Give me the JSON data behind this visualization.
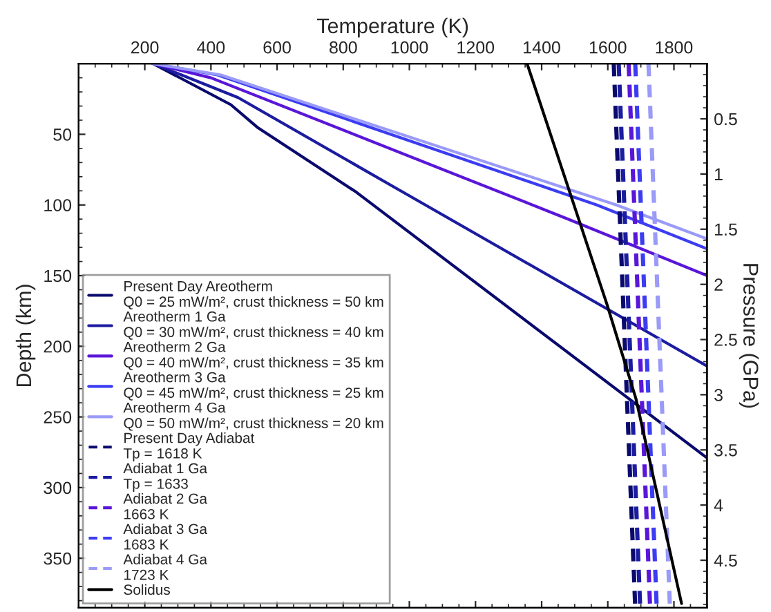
{
  "chart_data": {
    "type": "line",
    "xlabel": "Temperature (K)",
    "ylabel": "Depth (km)",
    "y2label": "Pressure (GPa)",
    "xlim": [
      0,
      1900
    ],
    "xticks": [
      200,
      400,
      600,
      800,
      1000,
      1200,
      1400,
      1600,
      1800
    ],
    "ylim": [
      385,
      0
    ],
    "yticks": [
      50,
      100,
      150,
      200,
      250,
      300,
      350
    ],
    "y2lim": [
      4.93,
      0
    ],
    "y2ticks": [
      0.5,
      1,
      1.5,
      2,
      2.5,
      3,
      3.5,
      4,
      4.5
    ],
    "legend": "bottom left",
    "grid": false,
    "line_style": "solid",
    "marker": "none",
    "series": [
      {
        "name": "Present Day Areotherm\nQ0 = 25 mW/m², crust thickness = 50 km",
        "color": "#0a0a6e",
        "x": [
          225,
          460,
          540,
          840,
          1900
        ],
        "values": [
          0,
          29,
          45,
          91,
          279
        ]
      },
      {
        "name": "Areotherm 1 Ga\nQ0 = 30 mW/m², crust thickness = 40 km",
        "color": "#1c1ca0",
        "x": [
          225,
          482,
          981,
          1900
        ],
        "values": [
          0,
          24,
          91,
          214
        ]
      },
      {
        "name": "Areotherm 2 Ga\nQ0 = 40 mW/m², crust thickness = 35 km",
        "color": "#5a16d8",
        "x": [
          225,
          400,
          1480,
          1900
        ],
        "values": [
          0,
          10,
          110,
          150
        ]
      },
      {
        "name": "Areotherm 3 Ga\nQ0 = 45 mW/m², crust thickness = 25 km",
        "color": "#3c3cf2",
        "x": [
          225,
          420,
          1567,
          1900
        ],
        "values": [
          0,
          8,
          100,
          131
        ]
      },
      {
        "name": "Areotherm 4 Ga\nQ0 = 50 mW/m², crust thickness = 20 km",
        "color": "#9a9af8",
        "x": [
          225,
          430,
          1626,
          1900
        ],
        "values": [
          0,
          8,
          100,
          124
        ]
      },
      {
        "name": "Present Day Adiabat\nTp = 1618 K",
        "color": "#0a0a6e",
        "line_style": "dashed",
        "x": [
          1618,
          1683
        ],
        "values": [
          0,
          385
        ]
      },
      {
        "name": "Adiabat 1 Ga\nTp = 1633",
        "color": "#1c1ca0",
        "line_style": "dashed",
        "x": [
          1633,
          1698
        ],
        "values": [
          0,
          385
        ]
      },
      {
        "name": "Adiabat 2 Ga\n1663 K",
        "color": "#5a16d8",
        "line_style": "dashed",
        "x": [
          1663,
          1728
        ],
        "values": [
          0,
          385
        ]
      },
      {
        "name": "Adiabat 3 Ga\n1683 K",
        "color": "#3c3cf2",
        "line_style": "dashed",
        "x": [
          1683,
          1748
        ],
        "values": [
          0,
          385
        ]
      },
      {
        "name": "Adiabat 4 Ga\n1723 K",
        "color": "#9a9af8",
        "line_style": "dashed",
        "x": [
          1723,
          1788
        ],
        "values": [
          0,
          385
        ]
      },
      {
        "name": "Solidus",
        "color": "#000000",
        "x": [
          1356,
          1597,
          1685,
          1823
        ],
        "values": [
          0,
          170,
          237,
          382
        ]
      }
    ]
  }
}
